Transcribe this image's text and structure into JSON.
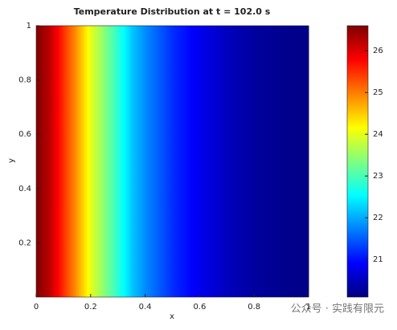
{
  "chart_data": {
    "type": "heatmap",
    "title": "Temperature Distribution at t = 102.0 s",
    "xlabel": "x",
    "ylabel": "y",
    "x": [
      0,
      0.05,
      0.1,
      0.15,
      0.2,
      0.25,
      0.3,
      0.35,
      0.4,
      0.5,
      0.6,
      0.7,
      0.8,
      0.9,
      1
    ],
    "values": [
      26.6,
      26.2,
      25.5,
      24.8,
      24.0,
      23.4,
      22.8,
      22.2,
      21.8,
      21.2,
      20.8,
      20.5,
      20.3,
      20.2,
      20.15
    ],
    "xlim": [
      0,
      1
    ],
    "xticks": [
      0,
      0.2,
      0.4,
      0.6,
      0.8,
      1
    ],
    "ylim": [
      0,
      1
    ],
    "yticks": [
      0.2,
      0.4,
      0.6,
      0.8,
      1
    ],
    "colormap": "jet",
    "clim": [
      20.1,
      26.6
    ],
    "cticks": [
      21,
      22,
      23,
      24,
      25,
      26
    ],
    "watermark": "公众号 · 实践有限元"
  }
}
